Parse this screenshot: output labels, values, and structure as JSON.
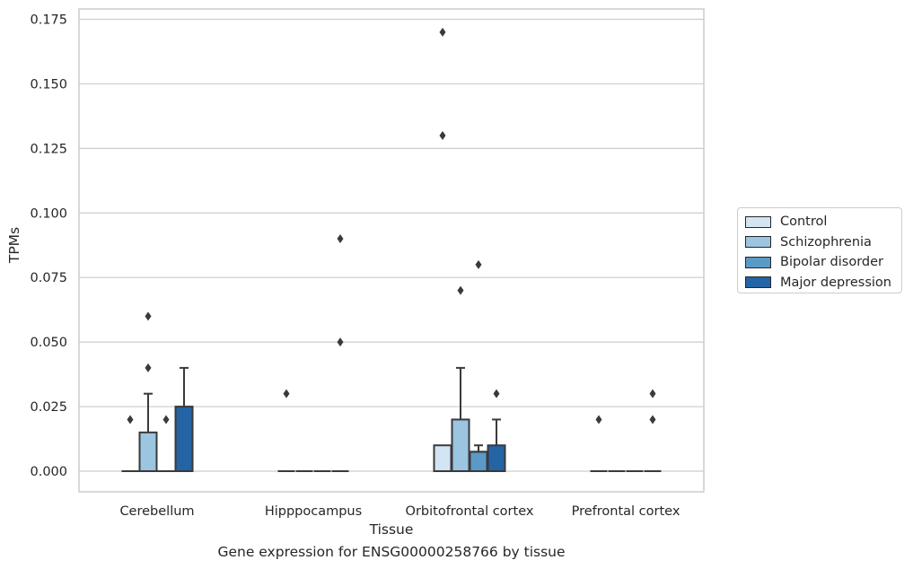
{
  "chart_data": {
    "type": "box",
    "title": "",
    "caption": "Gene expression for ENSG00000258766 by tissue",
    "xlabel": "Tissue",
    "ylabel": "TPMs",
    "ylim": [
      -0.008,
      0.179
    ],
    "yticks": [
      "0.000",
      "0.025",
      "0.050",
      "0.075",
      "0.100",
      "0.125",
      "0.150",
      "0.175"
    ],
    "grid": true,
    "legend_position": "right",
    "categories": [
      "Cerebellum",
      "Hipppocampus",
      "Orbitofrontal cortex",
      "Prefrontal cortex"
    ],
    "series": [
      {
        "name": "Control",
        "color": "#d3e4f3",
        "boxes": [
          {
            "q1": 0,
            "median": 0,
            "q3": 0,
            "whisker_low": 0,
            "whisker_high": 0,
            "outliers": [
              0.02
            ]
          },
          {
            "q1": 0,
            "median": 0,
            "q3": 0,
            "whisker_low": 0,
            "whisker_high": 0,
            "outliers": [
              0.03
            ]
          },
          {
            "q1": 0,
            "median": 0,
            "q3": 0.01,
            "whisker_low": 0,
            "whisker_high": 0.01,
            "outliers": [
              0.13,
              0.17
            ]
          },
          {
            "q1": 0,
            "median": 0,
            "q3": 0,
            "whisker_low": 0,
            "whisker_high": 0,
            "outliers": [
              0.02
            ]
          }
        ]
      },
      {
        "name": "Schizophrenia",
        "color": "#9bc5e0",
        "boxes": [
          {
            "q1": 0,
            "median": 0,
            "q3": 0.015,
            "whisker_low": 0,
            "whisker_high": 0.03,
            "outliers": [
              0.04,
              0.06
            ]
          },
          {
            "q1": 0,
            "median": 0,
            "q3": 0,
            "whisker_low": 0,
            "whisker_high": 0,
            "outliers": []
          },
          {
            "q1": 0,
            "median": 0,
            "q3": 0.02,
            "whisker_low": 0,
            "whisker_high": 0.04,
            "outliers": [
              0.07
            ]
          },
          {
            "q1": 0,
            "median": 0,
            "q3": 0,
            "whisker_low": 0,
            "whisker_high": 0,
            "outliers": []
          }
        ]
      },
      {
        "name": "Bipolar disorder",
        "color": "#5b9ac7",
        "boxes": [
          {
            "q1": 0,
            "median": 0,
            "q3": 0,
            "whisker_low": 0,
            "whisker_high": 0,
            "outliers": [
              0.02
            ]
          },
          {
            "q1": 0,
            "median": 0,
            "q3": 0,
            "whisker_low": 0,
            "whisker_high": 0,
            "outliers": []
          },
          {
            "q1": 0,
            "median": 0.0075,
            "q3": 0.0075,
            "whisker_low": 0,
            "whisker_high": 0.01,
            "outliers": [
              0.08
            ]
          },
          {
            "q1": 0,
            "median": 0,
            "q3": 0,
            "whisker_low": 0,
            "whisker_high": 0,
            "outliers": []
          }
        ]
      },
      {
        "name": "Major depression",
        "color": "#2464a4",
        "boxes": [
          {
            "q1": 0,
            "median": 0,
            "q3": 0.025,
            "whisker_low": 0,
            "whisker_high": 0.04,
            "outliers": []
          },
          {
            "q1": 0,
            "median": 0,
            "q3": 0,
            "whisker_low": 0,
            "whisker_high": 0,
            "outliers": [
              0.05,
              0.09
            ]
          },
          {
            "q1": 0,
            "median": 0,
            "q3": 0.01,
            "whisker_low": 0,
            "whisker_high": 0.02,
            "outliers": [
              0.03
            ]
          },
          {
            "q1": 0,
            "median": 0,
            "q3": 0,
            "whisker_low": 0,
            "whisker_high": 0,
            "outliers": [
              0.02,
              0.03
            ]
          }
        ]
      }
    ]
  }
}
